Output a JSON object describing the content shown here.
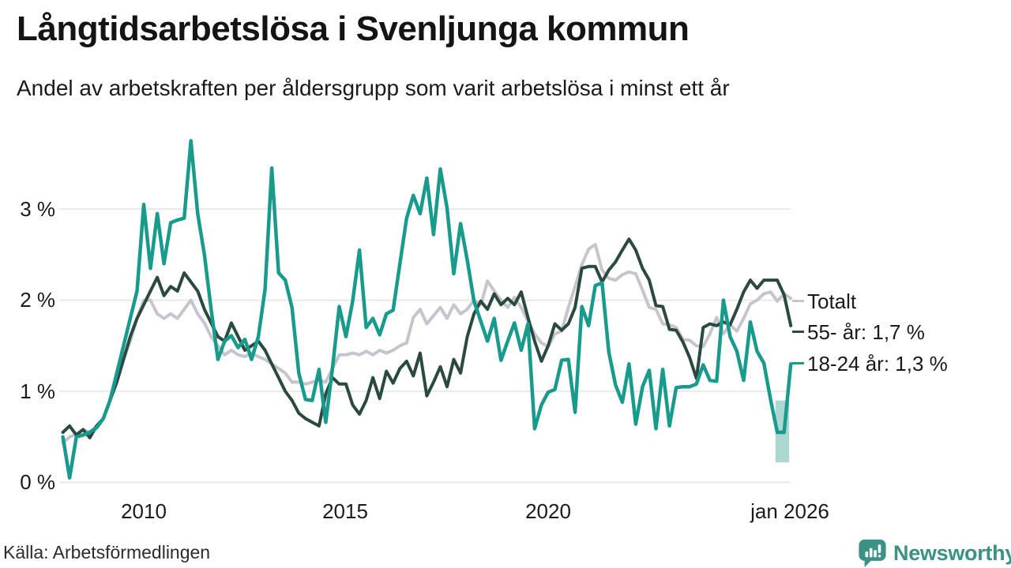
{
  "header": {
    "title": "Långtidsarbetslösa i Svenljunga kommun",
    "subtitle": "Andel av arbetskraften per åldersgrupp som varit arbetslösa i minst ett år"
  },
  "chart_data": {
    "type": "line",
    "title": "Långtidsarbetslösa i Svenljunga kommun",
    "subtitle": "Andel av arbetskraften per åldersgrupp som varit arbetslösa i minst ett år",
    "unit": "% av arbetskraften",
    "x_start_year": 2008.0,
    "x_step_years": 0.1666667,
    "x_end_label": "jan 2026",
    "ylim": [
      0,
      3.9
    ],
    "grid": "horizontal",
    "y_ticks": [
      {
        "value": 3,
        "label": "3 %"
      },
      {
        "value": 2,
        "label": "2 %"
      },
      {
        "value": 1,
        "label": "1 %"
      },
      {
        "value": 0,
        "label": "0 %"
      }
    ],
    "x_ticks": [
      {
        "year": 2010,
        "label": "2010"
      },
      {
        "year": 2015,
        "label": "2015"
      },
      {
        "year": 2020,
        "label": "2020"
      },
      {
        "year": 2026,
        "label": "jan 2026"
      }
    ],
    "series": [
      {
        "id": "totalt",
        "name": "Totalt",
        "color": "#c6c4ce",
        "width": 4,
        "latest_label": "Totalt",
        "values": [
          0.43,
          0.5,
          0.53,
          0.58,
          0.55,
          0.62,
          0.7,
          0.9,
          1.15,
          1.35,
          1.55,
          1.8,
          2.0,
          2.0,
          1.85,
          1.8,
          1.85,
          1.8,
          1.9,
          2.0,
          1.85,
          1.75,
          1.6,
          1.5,
          1.4,
          1.45,
          1.4,
          1.38,
          1.42,
          1.38,
          1.35,
          1.3,
          1.25,
          1.2,
          1.1,
          1.1,
          1.08,
          1.1,
          1.12,
          1.1,
          1.25,
          1.4,
          1.4,
          1.42,
          1.4,
          1.44,
          1.4,
          1.45,
          1.42,
          1.45,
          1.5,
          1.53,
          1.81,
          1.9,
          1.74,
          1.83,
          1.92,
          1.8,
          1.95,
          1.85,
          1.9,
          2.0,
          1.95,
          2.21,
          2.1,
          2.0,
          1.92,
          2.03,
          1.92,
          1.77,
          1.63,
          1.53,
          1.49,
          1.63,
          1.66,
          1.92,
          2.15,
          2.39,
          2.56,
          2.61,
          2.33,
          2.24,
          2.22,
          2.28,
          2.31,
          2.29,
          2.11,
          1.92,
          1.9,
          1.74,
          1.73,
          1.7,
          1.57,
          1.56,
          1.5,
          1.49,
          1.63,
          1.81,
          1.63,
          1.73,
          1.66,
          1.8,
          1.96,
          2.0,
          2.07,
          2.09,
          1.99,
          2.07,
          2.02
        ]
      },
      {
        "id": "55-ar",
        "name": "55- år",
        "color": "#2a4a40",
        "width": 4,
        "latest_label": "55- år: 1,7 %",
        "values": [
          0.55,
          0.62,
          0.52,
          0.58,
          0.49,
          0.62,
          0.7,
          0.9,
          1.1,
          1.35,
          1.6,
          1.8,
          1.95,
          2.1,
          2.25,
          2.05,
          2.15,
          2.1,
          2.3,
          2.2,
          2.1,
          1.9,
          1.75,
          1.6,
          1.55,
          1.75,
          1.6,
          1.45,
          1.5,
          1.55,
          1.45,
          1.3,
          1.15,
          1.0,
          0.9,
          0.76,
          0.7,
          0.66,
          0.62,
          0.97,
          1.15,
          1.08,
          1.08,
          0.85,
          0.75,
          0.9,
          1.15,
          0.92,
          1.22,
          1.09,
          1.25,
          1.33,
          1.17,
          1.42,
          0.95,
          1.1,
          1.27,
          1.05,
          1.35,
          1.2,
          1.6,
          1.85,
          1.99,
          1.9,
          2.07,
          1.95,
          2.02,
          1.95,
          2.09,
          1.81,
          1.55,
          1.33,
          1.5,
          1.74,
          1.67,
          1.74,
          1.92,
          2.35,
          2.37,
          2.37,
          2.2,
          2.33,
          2.42,
          2.55,
          2.67,
          2.55,
          2.35,
          2.22,
          1.94,
          1.93,
          1.68,
          1.67,
          1.54,
          1.37,
          1.14,
          1.7,
          1.74,
          1.72,
          1.76,
          1.73,
          1.9,
          2.09,
          2.22,
          2.13,
          2.22,
          2.22,
          2.22,
          2.06,
          1.72
        ]
      },
      {
        "id": "18-24-ar",
        "name": "18-24 år",
        "color": "#189a8c",
        "width": 4.5,
        "latest_label": "18-24 år: 1,3 %",
        "values": [
          0.5,
          0.05,
          0.5,
          0.52,
          0.55,
          0.6,
          0.7,
          0.9,
          1.2,
          1.5,
          1.8,
          2.1,
          3.05,
          2.35,
          2.95,
          2.4,
          2.85,
          2.88,
          2.9,
          3.75,
          2.95,
          2.5,
          1.9,
          1.35,
          1.55,
          1.61,
          1.48,
          1.57,
          1.35,
          1.6,
          2.12,
          3.45,
          2.3,
          2.22,
          1.92,
          1.2,
          0.91,
          0.9,
          1.24,
          0.66,
          1.25,
          1.93,
          1.6,
          1.99,
          2.55,
          1.7,
          1.8,
          1.62,
          1.85,
          1.89,
          2.4,
          2.9,
          3.15,
          2.95,
          3.34,
          2.72,
          3.44,
          3.01,
          2.29,
          2.84,
          2.44,
          1.99,
          1.77,
          1.55,
          1.8,
          1.34,
          1.55,
          1.75,
          1.45,
          1.74,
          0.59,
          0.85,
          0.99,
          1.02,
          1.34,
          1.35,
          0.77,
          1.93,
          1.72,
          2.16,
          2.19,
          1.43,
          1.07,
          0.88,
          1.3,
          0.64,
          1.05,
          1.23,
          0.59,
          1.24,
          0.62,
          1.04,
          1.05,
          1.05,
          1.08,
          1.29,
          1.12,
          1.11,
          2.0,
          1.6,
          1.44,
          1.12,
          1.76,
          1.44,
          1.31,
          0.91,
          0.55,
          0.55,
          1.3
        ]
      }
    ],
    "highlight_band": {
      "x_from_year": 2025.62,
      "x_to_year": 2025.96,
      "value_top": 0.9,
      "value_bottom": 0.22,
      "color": "#abd9d1"
    },
    "legend_position": "right-of-line-ends"
  },
  "legend": {
    "items": [
      {
        "label": "Totalt",
        "color": "#c6c4ce"
      },
      {
        "label": "55- år: 1,7 %",
        "color": "#2a4a40"
      },
      {
        "label": "18-24 år: 1,3 %",
        "color": "#189a8c"
      }
    ]
  },
  "footer": {
    "source": "Källa: Arbetsförmedlingen",
    "brand": "Newsworthy"
  },
  "colors": {
    "accent_teal": "#189a8c",
    "dark_green": "#2a4a40",
    "gray": "#c6c4ce",
    "band": "#abd9d1",
    "gridline": "#e4e3e7",
    "text": "#141414",
    "brand_teal": "#3b9183"
  }
}
